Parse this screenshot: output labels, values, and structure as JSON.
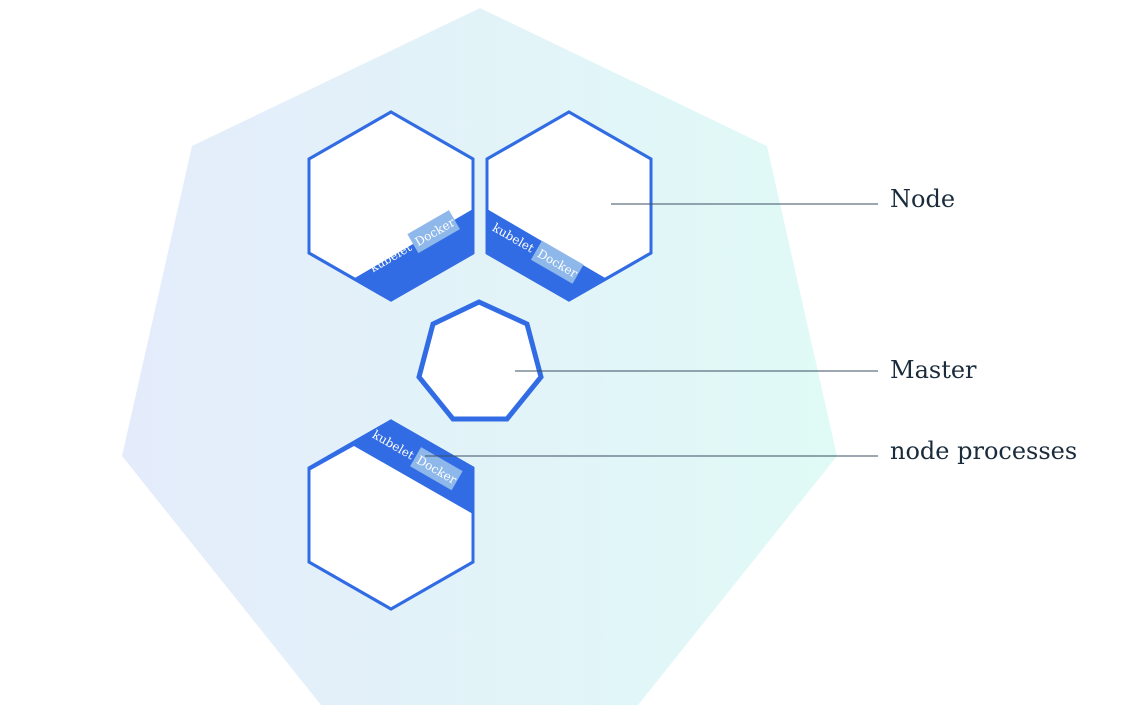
{
  "labels": {
    "node": "Node",
    "master": "Master",
    "node_processes": "node processes"
  },
  "process_labels": {
    "kubelet": "kubelet",
    "docker": "Docker"
  },
  "colors": {
    "accent": "#326ce5",
    "accent_light": "#8fb8ea",
    "cluster_gradient_start": "#e4ecfb",
    "cluster_gradient_end": "#e0faf6",
    "label_text": "#1a2b3c",
    "leader_line": "#3b4f63"
  },
  "nodes": [
    {
      "name": "node-top-left",
      "band": "bottom"
    },
    {
      "name": "node-top-right",
      "band": "bottom-left"
    },
    {
      "name": "node-bottom-left",
      "band": "top"
    }
  ]
}
